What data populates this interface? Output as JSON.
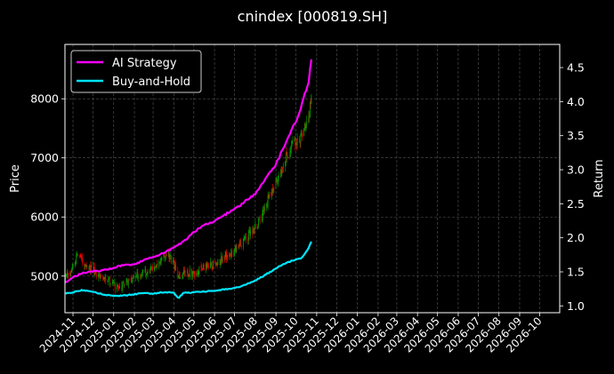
{
  "chart_data": {
    "type": "line",
    "title": "cnindex [000819.SH]",
    "ylabel_left": "Price",
    "ylabel_right": "Return",
    "xlim": [
      "2024-10-20",
      "2026-10-31"
    ],
    "ylim_left": [
      4380,
      8920
    ],
    "ylim_right": [
      0.9,
      4.84
    ],
    "xticks": [
      "2024-11",
      "2024-12",
      "2025-01",
      "2025-02",
      "2025-03",
      "2025-04",
      "2025-05",
      "2025-06",
      "2025-07",
      "2025-08",
      "2025-09",
      "2025-10",
      "2025-11",
      "2025-12",
      "2026-01",
      "2026-02",
      "2026-03",
      "2026-04",
      "2026-05",
      "2026-06",
      "2026-07",
      "2026-08",
      "2026-09",
      "2026-10"
    ],
    "yticks_left": [
      5000,
      6000,
      7000,
      8000
    ],
    "yticks_right": [
      "1.0",
      "1.5",
      "2.0",
      "2.5",
      "3.0",
      "3.5",
      "4.0",
      "4.5"
    ],
    "grid": true,
    "legend_position": "top-left",
    "colors": {
      "background": "#000000",
      "ai_strategy": "#ff00ff",
      "buy_and_hold": "#00e5ff",
      "candle_up": "#00a000",
      "candle_down": "#ff0000",
      "grid": "#555555"
    },
    "series": [
      {
        "name": "AI Strategy",
        "axis": "right",
        "x": [
          "2024-10-21",
          "2024-11-01",
          "2024-11-15",
          "2024-12-01",
          "2024-12-15",
          "2025-01-01",
          "2025-01-15",
          "2025-02-01",
          "2025-02-15",
          "2025-03-01",
          "2025-03-15",
          "2025-04-01",
          "2025-04-15",
          "2025-05-01",
          "2025-05-15",
          "2025-06-01",
          "2025-06-15",
          "2025-07-01",
          "2025-07-15",
          "2025-08-01",
          "2025-08-15",
          "2025-09-01",
          "2025-09-15",
          "2025-10-01",
          "2025-10-10",
          "2025-10-20",
          "2025-10-25"
        ],
        "values": [
          1.35,
          1.42,
          1.48,
          1.51,
          1.52,
          1.56,
          1.6,
          1.61,
          1.67,
          1.72,
          1.77,
          1.85,
          1.94,
          2.08,
          2.19,
          2.24,
          2.33,
          2.42,
          2.52,
          2.65,
          2.85,
          3.08,
          3.38,
          3.72,
          3.96,
          4.3,
          4.7
        ]
      },
      {
        "name": "Buy-and-Hold",
        "axis": "right",
        "x": [
          "2024-10-21",
          "2024-11-01",
          "2024-11-15",
          "2024-12-01",
          "2024-12-15",
          "2025-01-01",
          "2025-01-15",
          "2025-02-01",
          "2025-02-15",
          "2025-03-01",
          "2025-03-15",
          "2025-04-01",
          "2025-04-08",
          "2025-04-15",
          "2025-05-01",
          "2025-05-15",
          "2025-06-01",
          "2025-06-15",
          "2025-07-01",
          "2025-07-15",
          "2025-08-01",
          "2025-08-15",
          "2025-09-01",
          "2025-09-15",
          "2025-10-01",
          "2025-10-10",
          "2025-10-20",
          "2025-10-25"
        ],
        "values": [
          1.18,
          1.2,
          1.23,
          1.21,
          1.17,
          1.15,
          1.15,
          1.17,
          1.19,
          1.18,
          1.2,
          1.2,
          1.11,
          1.19,
          1.2,
          1.21,
          1.22,
          1.24,
          1.26,
          1.3,
          1.37,
          1.45,
          1.55,
          1.63,
          1.68,
          1.71,
          1.85,
          1.97
        ]
      },
      {
        "name": "cnindex price",
        "axis": "left",
        "x": [
          "2024-10-21",
          "2024-11-01",
          "2024-11-08",
          "2024-11-15",
          "2024-12-01",
          "2024-12-15",
          "2025-01-01",
          "2025-01-10",
          "2025-01-15",
          "2025-02-01",
          "2025-02-15",
          "2025-03-01",
          "2025-03-10",
          "2025-03-20",
          "2025-04-01",
          "2025-04-08",
          "2025-04-15",
          "2025-05-01",
          "2025-05-15",
          "2025-06-01",
          "2025-06-15",
          "2025-07-01",
          "2025-07-15",
          "2025-08-01",
          "2025-08-15",
          "2025-09-01",
          "2025-09-15",
          "2025-10-01",
          "2025-10-10",
          "2025-10-20",
          "2025-10-25"
        ],
        "values": [
          4950,
          5150,
          5350,
          5250,
          5100,
          5000,
          4850,
          4780,
          4850,
          5000,
          5050,
          5100,
          5250,
          5400,
          5200,
          4950,
          5050,
          5050,
          5150,
          5200,
          5300,
          5450,
          5600,
          5800,
          6150,
          6600,
          7000,
          7300,
          7350,
          7700,
          8200
        ]
      }
    ]
  }
}
